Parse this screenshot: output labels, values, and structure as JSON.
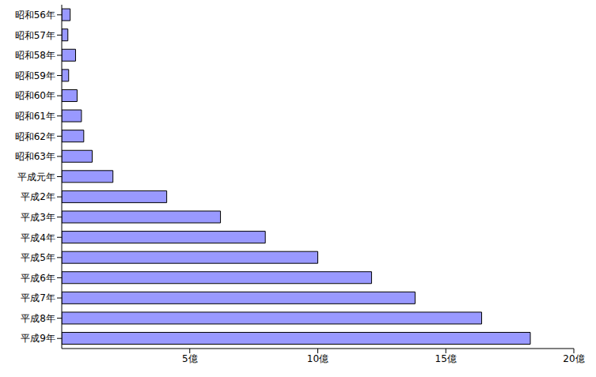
{
  "chart_data": {
    "type": "bar",
    "orientation": "horizontal",
    "categories": [
      "昭和56年",
      "昭和57年",
      "昭和58年",
      "昭和59年",
      "昭和60年",
      "昭和61年",
      "昭和62年",
      "昭和63年",
      "平成元年",
      "平成2年",
      "平成3年",
      "平成4年",
      "平成5年",
      "平成6年",
      "平成7年",
      "平成8年",
      "平成9年"
    ],
    "values": [
      0.33,
      0.24,
      0.54,
      0.27,
      0.6,
      0.77,
      0.86,
      1.19,
      2.0,
      4.1,
      6.2,
      7.95,
      10.0,
      12.1,
      13.8,
      16.4,
      18.3
    ],
    "color": "#9999ff",
    "xlim": [
      0,
      20
    ],
    "xticks": [
      {
        "value": 5,
        "label": "5億"
      },
      {
        "value": 10,
        "label": "10億"
      },
      {
        "value": 15,
        "label": "15億"
      },
      {
        "value": 20,
        "label": "20億"
      }
    ],
    "grid": false
  }
}
